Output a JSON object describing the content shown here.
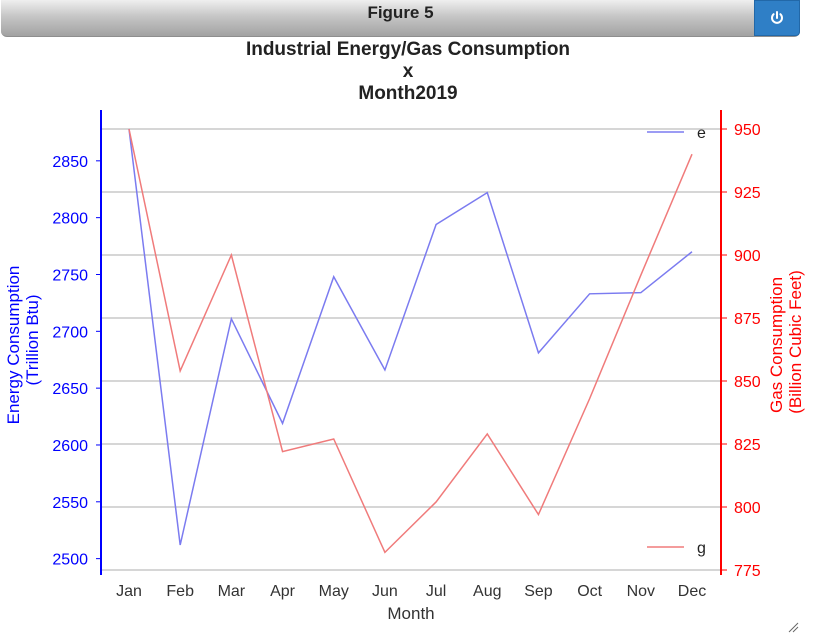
{
  "window": {
    "figure_title": "Figure 5",
    "power_icon": "power-icon"
  },
  "colors": {
    "energy": "#7b7bf0",
    "gas": "#f07b7b",
    "left_axis": "#0000ff",
    "right_axis": "#ff0000",
    "grid": "#c8c8c8"
  },
  "chart_data": {
    "type": "line",
    "title": [
      "Industrial Energy/Gas Consumption",
      "x",
      "Month2019"
    ],
    "xlabel": "Month",
    "ylabel_left": [
      "Energy Consumption",
      "(Trillion Btu)"
    ],
    "ylabel_right": [
      "Gas Consumption",
      "(Billion Cubic Feet)"
    ],
    "categories": [
      "Jan",
      "Feb",
      "Mar",
      "Apr",
      "May",
      "Jun",
      "Jul",
      "Aug",
      "Sep",
      "Oct",
      "Nov",
      "Dec"
    ],
    "ylim_left": [
      2490,
      2878
    ],
    "ylim_right": [
      775,
      950
    ],
    "yticks_left": [
      2500,
      2550,
      2600,
      2650,
      2700,
      2750,
      2800,
      2850
    ],
    "yticks_right": [
      775,
      800,
      825,
      850,
      875,
      900,
      925,
      950
    ],
    "grid": true,
    "series": [
      {
        "name": "e",
        "axis": "left",
        "legend_position": "top-right",
        "values": [
          2878,
          2512,
          2711,
          2619,
          2748,
          2666,
          2794,
          2822,
          2681,
          2733,
          2734,
          2770
        ]
      },
      {
        "name": "g",
        "axis": "right",
        "legend_position": "bottom-right",
        "values": [
          950,
          854,
          900,
          822,
          827,
          782,
          802,
          829,
          797,
          843,
          892,
          940
        ]
      }
    ]
  }
}
